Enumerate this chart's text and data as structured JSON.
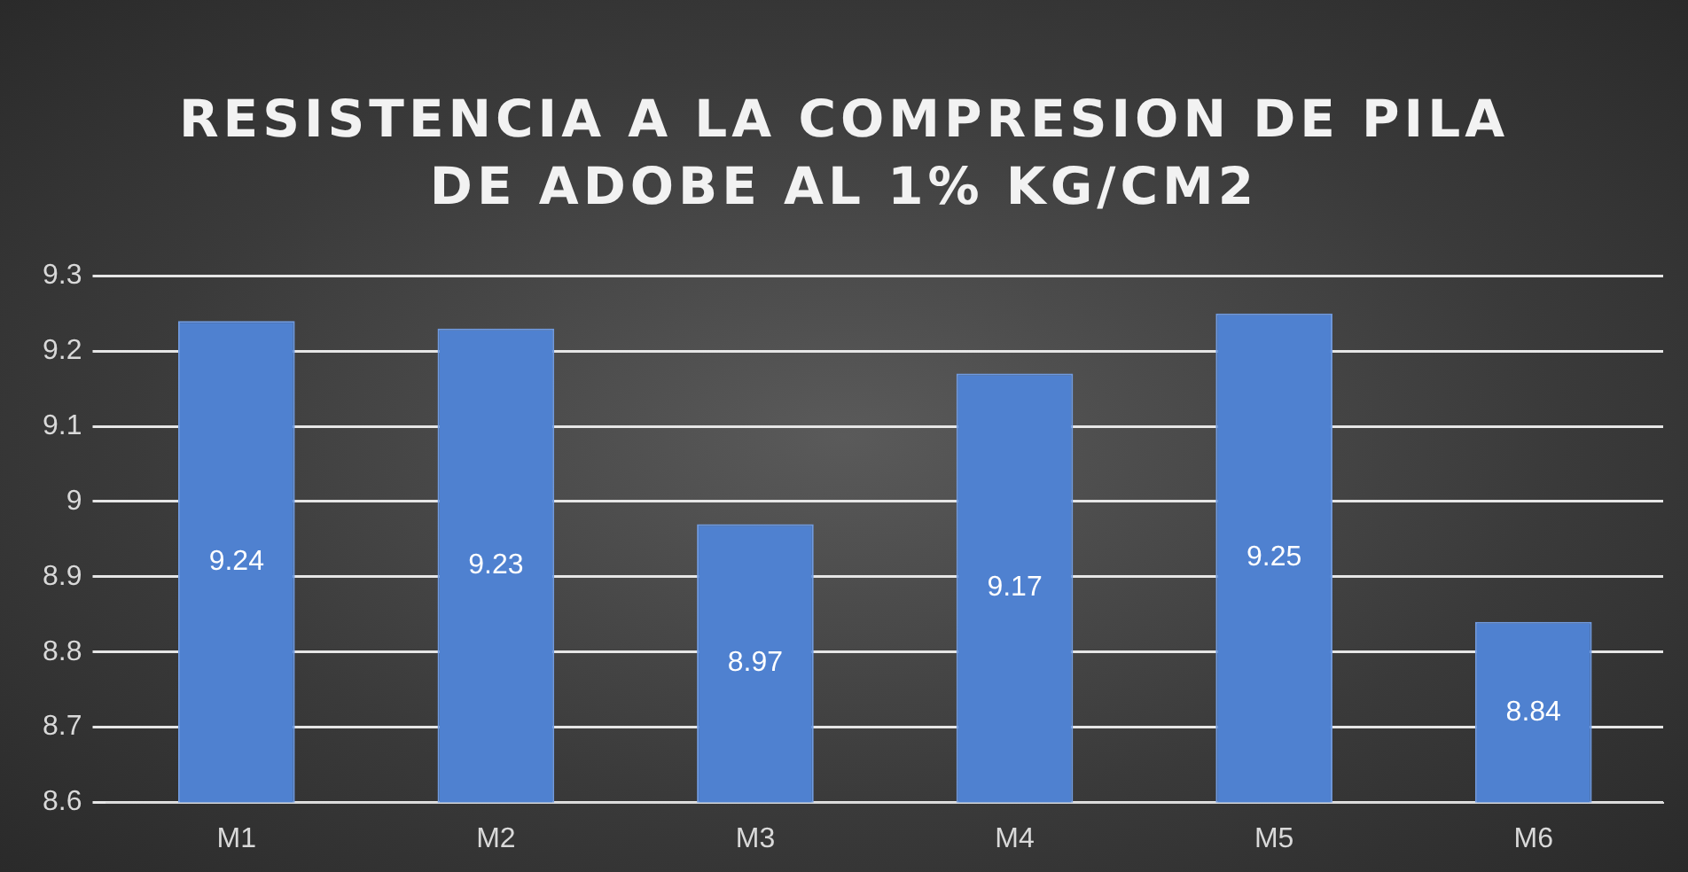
{
  "chart_data": {
    "type": "bar",
    "title": "RESISTENCIA A LA COMPRESION DE PILA DE ADOBE AL 1% KG/CM2",
    "categories": [
      "M1",
      "M2",
      "M3",
      "M4",
      "M5",
      "M6"
    ],
    "values": [
      9.24,
      9.23,
      8.97,
      9.17,
      9.25,
      8.84
    ],
    "color": "#4f81d0",
    "ylim": [
      8.6,
      9.3
    ],
    "yticks": [
      8.6,
      8.7,
      8.8,
      8.9,
      9,
      9.1,
      9.2,
      9.3
    ],
    "grid": "y",
    "legend": false,
    "data_labels": true
  }
}
